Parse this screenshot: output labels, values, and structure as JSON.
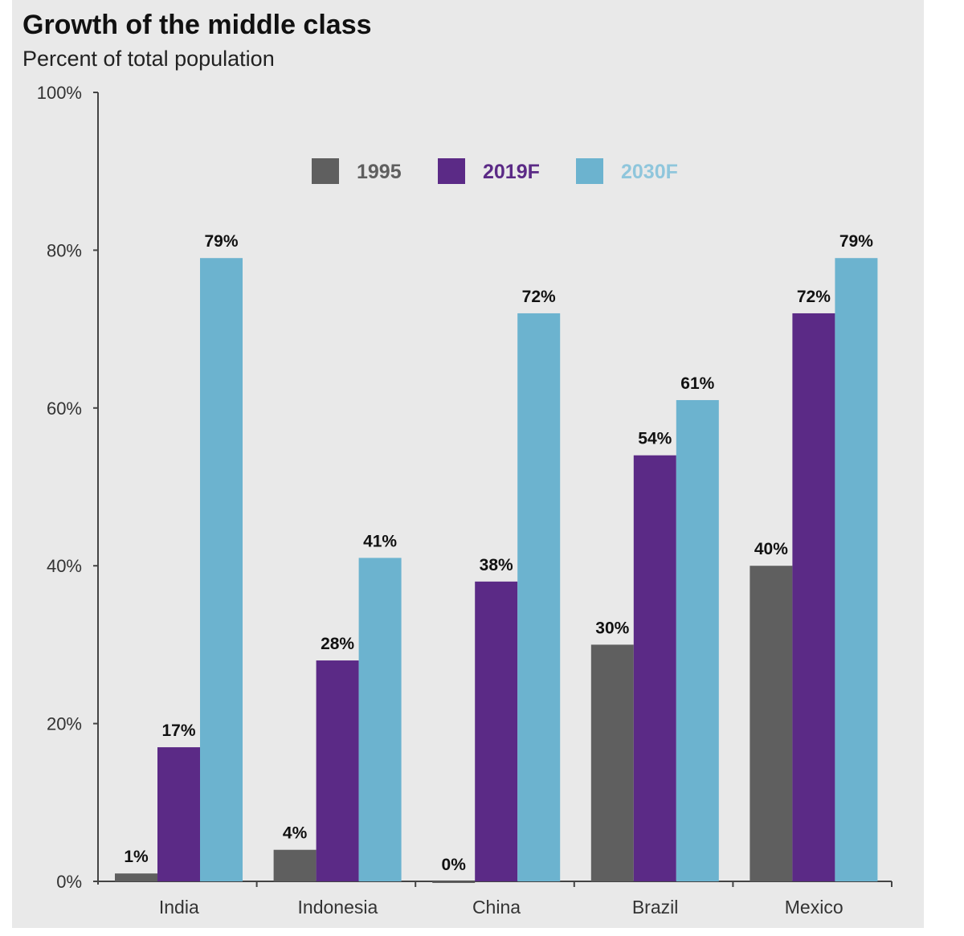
{
  "chart_data": {
    "type": "bar",
    "title": "Growth of the middle class",
    "subtitle": "Percent of total population",
    "categories": [
      "India",
      "Indonesia",
      "China",
      "Brazil",
      "Mexico"
    ],
    "series": [
      {
        "name": "1995",
        "color": "#5f5f5f",
        "values": [
          1,
          4,
          0,
          30,
          40
        ],
        "labels": [
          "1%",
          "4%",
          "0%",
          "30%",
          "40%"
        ]
      },
      {
        "name": "2019F",
        "color": "#5b2a86",
        "values": [
          17,
          28,
          38,
          54,
          72
        ],
        "labels": [
          "17%",
          "28%",
          "38%",
          "54%",
          "72%"
        ]
      },
      {
        "name": "2030F",
        "color": "#6cb3cf",
        "values": [
          79,
          41,
          72,
          61,
          79
        ],
        "labels": [
          "79%",
          "41%",
          "72%",
          "61%",
          "79%"
        ]
      }
    ],
    "legend_text_colors": [
      "#5f5f5f",
      "#5b2a86",
      "#8fc6dc"
    ],
    "ylim": [
      0,
      100
    ],
    "yticks": [
      0,
      20,
      40,
      60,
      80,
      100
    ],
    "ytick_labels": [
      "0%",
      "20%",
      "40%",
      "60%",
      "80%",
      "100%"
    ],
    "legend_position": "top-center",
    "grid": false
  }
}
